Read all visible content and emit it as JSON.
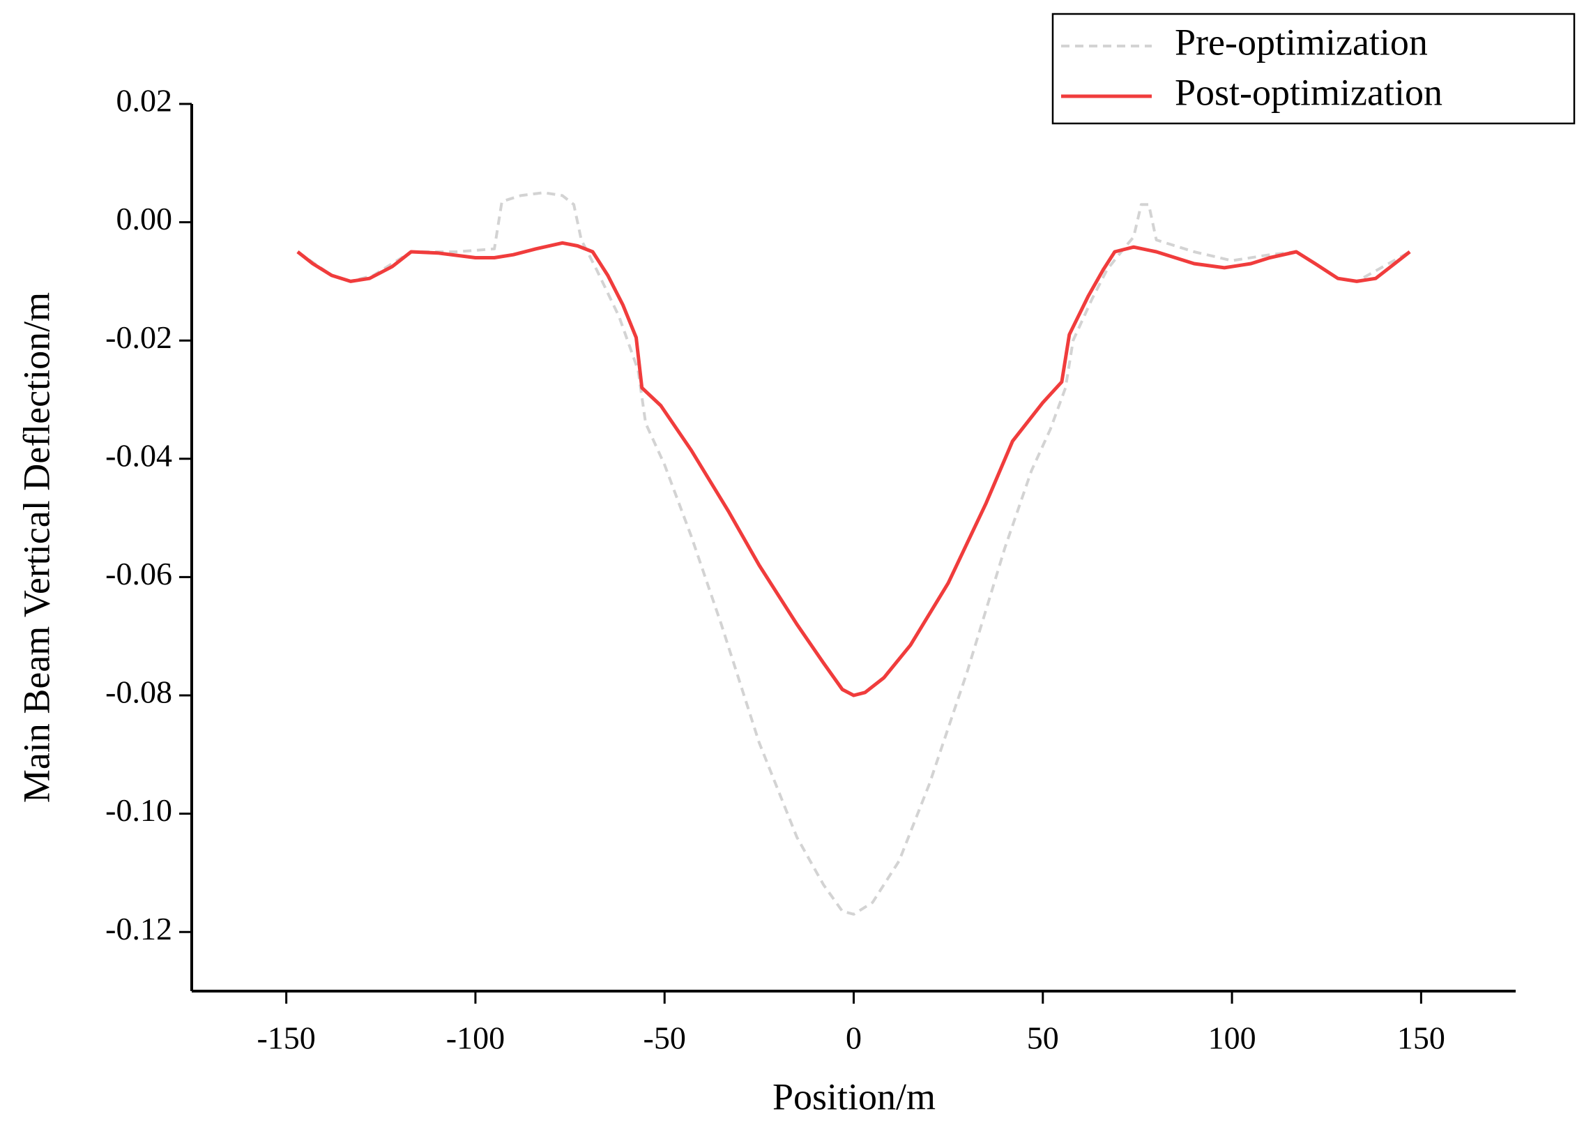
{
  "chart_data": {
    "type": "line",
    "x_label": "Position/m",
    "y_label": "Main Beam Vertical Deflection/m",
    "xlim": [
      -175,
      175
    ],
    "xticks": [
      -150,
      -100,
      -50,
      0,
      50,
      100,
      150
    ],
    "ylim": [
      -0.13,
      0.02
    ],
    "yticks": [
      0.02,
      {
        "value": 0,
        "label": "0.00"
      },
      -0.02,
      -0.04,
      -0.06,
      -0.08,
      {
        "value": -0.1,
        "label": "-0.10"
      },
      -0.12
    ],
    "grid": false,
    "legend": "top-right",
    "series": [
      {
        "name": "Pre-optimization",
        "color": "#d3d3d3",
        "linestyle": "dashed",
        "x": [
          -147,
          -138,
          -133,
          -127,
          -117,
          -105,
          -95,
          -93,
          -88,
          -82,
          -77,
          -74,
          -72,
          -68,
          -62,
          -57,
          -55,
          -50,
          -43,
          -35,
          -25,
          -15,
          -8,
          -3,
          0,
          5,
          12,
          20,
          30,
          40,
          47,
          52,
          56,
          58,
          63,
          67,
          72,
          74,
          76,
          78,
          80,
          90,
          100,
          110,
          117,
          128,
          133,
          147
        ],
        "values": [
          -0.005,
          -0.009,
          -0.01,
          -0.009,
          -0.005,
          -0.005,
          -0.0045,
          0.0035,
          0.0045,
          0.005,
          0.0045,
          0.003,
          -0.003,
          -0.008,
          -0.016,
          -0.025,
          -0.034,
          -0.041,
          -0.053,
          -0.068,
          -0.088,
          -0.104,
          -0.112,
          -0.1165,
          -0.117,
          -0.115,
          -0.108,
          -0.095,
          -0.076,
          -0.055,
          -0.042,
          -0.035,
          -0.028,
          -0.02,
          -0.013,
          -0.008,
          -0.004,
          -0.0025,
          0.003,
          0.003,
          -0.003,
          -0.005,
          -0.0065,
          -0.0055,
          -0.005,
          -0.0095,
          -0.01,
          -0.005
        ]
      },
      {
        "name": "Post-optimization",
        "color": "#f03c3c",
        "linestyle": "solid",
        "x": [
          -147,
          -143,
          -138,
          -133,
          -128,
          -122,
          -117,
          -110,
          -100,
          -95,
          -90,
          -84,
          -77,
          -73,
          -69,
          -65,
          -61,
          -57.5,
          -56,
          -51,
          -43,
          -33,
          -25,
          -15,
          -8,
          -3,
          0,
          3,
          8,
          15,
          25,
          35,
          42,
          50,
          55,
          57,
          62,
          66,
          69,
          74,
          80,
          90,
          98,
          105,
          110,
          117,
          122,
          128,
          133,
          138,
          143,
          147
        ],
        "values": [
          -0.005,
          -0.007,
          -0.009,
          -0.01,
          -0.0095,
          -0.0075,
          -0.005,
          -0.0052,
          -0.006,
          -0.006,
          -0.0055,
          -0.0045,
          -0.0035,
          -0.004,
          -0.005,
          -0.009,
          -0.014,
          -0.0195,
          -0.028,
          -0.031,
          -0.0385,
          -0.049,
          -0.058,
          -0.068,
          -0.0745,
          -0.079,
          -0.08,
          -0.0795,
          -0.077,
          -0.0715,
          -0.061,
          -0.0475,
          -0.037,
          -0.0305,
          -0.027,
          -0.019,
          -0.0125,
          -0.008,
          -0.005,
          -0.0042,
          -0.005,
          -0.007,
          -0.0077,
          -0.007,
          -0.006,
          -0.005,
          -0.007,
          -0.0095,
          -0.01,
          -0.0095,
          -0.007,
          -0.005
        ]
      }
    ]
  }
}
